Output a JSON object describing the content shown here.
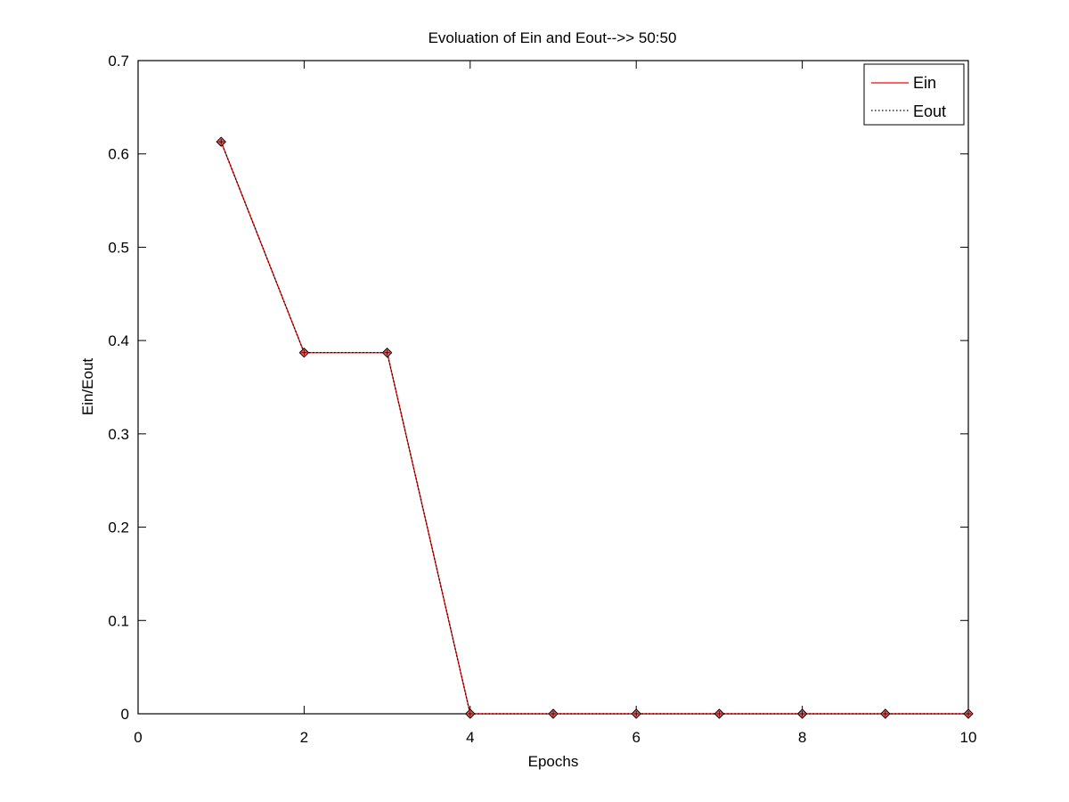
{
  "chart_data": {
    "type": "line",
    "title": "Evoluation of Ein and Eout-->> 50:50",
    "xlabel": "Epochs",
    "ylabel": "Ein/Eout",
    "xlim": [
      0,
      10
    ],
    "ylim": [
      0,
      0.7
    ],
    "xticks": [
      0,
      2,
      4,
      6,
      8,
      10
    ],
    "yticks": [
      0,
      0.1,
      0.2,
      0.3,
      0.4,
      0.5,
      0.6,
      0.7
    ],
    "grid": false,
    "legend_position": "top-right",
    "x": [
      1,
      2,
      3,
      4,
      5,
      6,
      7,
      8,
      9,
      10
    ],
    "series": [
      {
        "name": "Ein",
        "color": "#ff0000",
        "line_style": "solid",
        "marker_fill": "#ff5a5a",
        "values": [
          0.613,
          0.387,
          0.387,
          0,
          0,
          0,
          0,
          0,
          0,
          0
        ]
      },
      {
        "name": "Eout",
        "color": "#000000",
        "line_style": "dotted",
        "marker_fill": "#ff5a5a",
        "values": [
          0.613,
          0.387,
          0.387,
          0,
          0,
          0,
          0,
          0,
          0,
          0
        ]
      }
    ]
  }
}
